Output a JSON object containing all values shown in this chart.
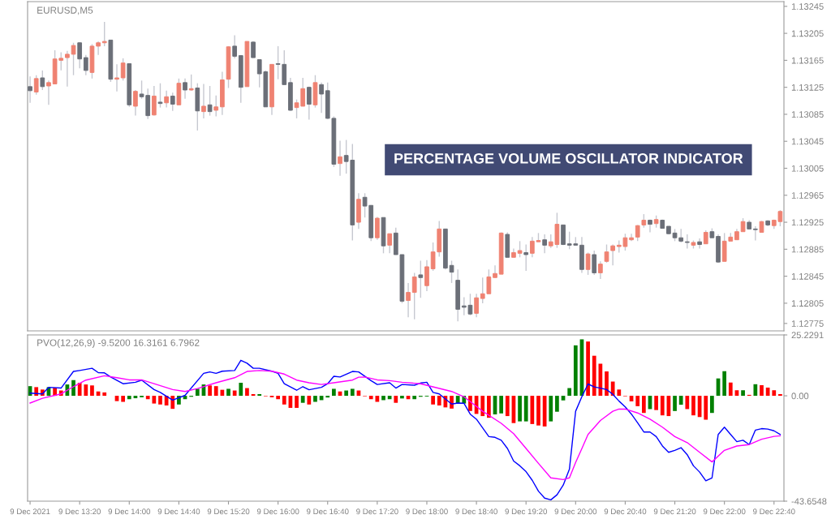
{
  "chart_data": [
    {
      "type": "candlestick",
      "title": "PERCENTAGE VOLUME OSCILLATOR INDICATOR",
      "annotations": [
        "EURUSD,M5"
      ],
      "colors": [
        "#6b6f78",
        "#ef8272",
        "#6b6f78",
        "#ef8272",
        "#ef8272",
        "#ef8272",
        "#ef8272",
        "#ef8272",
        "#6b6f78",
        "#6b6f78",
        "#ef8272",
        "#ef8272",
        "#ef8272",
        "#6b6f78",
        "#ef8272",
        "#ef8272",
        "#6b6f78",
        "#ef8272",
        "#6b6f78",
        "#6b6f78",
        "#ef8272",
        "#6b6f78",
        "#ef8272",
        "#6b6f78",
        "#ef8272",
        "#6b6f78",
        "#ef8272",
        "#6b6f78",
        "#ef8272",
        "#6b6f78",
        "#ef8272",
        "#ef8272",
        "#ef8272",
        "#6b6f78",
        "#6b6f78",
        "#ef8272",
        "#6b6f78",
        "#6b6f78",
        "#6b6f78",
        "#ef8272",
        "#6b6f78",
        "#6b6f78",
        "#6b6f78",
        "#ef8272",
        "#ef8272",
        "#6b6f78",
        "#ef8272",
        "#6b6f78",
        "#6b6f78",
        "#6b6f78",
        "#ef8272",
        "#6b6f78",
        "#6b6f78",
        "#ef8272",
        "#6b6f78",
        "#6b6f78",
        "#ef8272",
        "#6b6f78",
        "#ef8272",
        "#6b6f78",
        "#6b6f78",
        "#ef8272",
        "#ef8272",
        "#6b6f78",
        "#ef8272",
        "#ef8272",
        "#ef8272",
        "#6b6f78",
        "#6b6f78",
        "#6b6f78",
        "#6b6f78",
        "#6b6f78",
        "#ef8272",
        "#ef8272",
        "#ef8272",
        "#ef8272",
        "#ef8272",
        "#6b6f78",
        "#ef8272",
        "#ef8272",
        "#6b6f78",
        "#ef8272",
        "#ef8272",
        "#6b6f78",
        "#ef8272",
        "#ef8272",
        "#6b6f78",
        "#6b6f78",
        "#6b6f78",
        "#6b6f78",
        "#ef8272",
        "#6b6f78",
        "#ef8272",
        "#ef8272",
        "#ef8272",
        "#ef8272",
        "#ef8272",
        "#ef8272",
        "#ef8272",
        "#ef8272",
        "#6b6f78",
        "#ef8272",
        "#6b6f78",
        "#6b6f78",
        "#6b6f78",
        "#6b6f78",
        "#6b6f78",
        "#ef8272",
        "#6b6f78",
        "#ef8272",
        "#6b6f78",
        "#6b6f78",
        "#ef8272",
        "#ef8272",
        "#ef8272",
        "#ef8272",
        "#6b6f78",
        "#6b6f78",
        "#ef8272",
        "#6b6f78",
        "#ef8272",
        "#ef8272"
      ],
      "x": [
        "2021-12-09T12:40",
        "2021-12-09T12:45",
        "2021-12-09T12:50",
        "2021-12-09T12:55",
        "2021-12-09T13:00",
        "2021-12-09T13:05",
        "2021-12-09T13:10",
        "2021-12-09T13:15",
        "2021-12-09T13:20",
        "2021-12-09T13:25",
        "2021-12-09T13:30",
        "2021-12-09T13:35",
        "2021-12-09T13:40",
        "2021-12-09T13:45",
        "2021-12-09T13:50",
        "2021-12-09T13:55",
        "2021-12-09T14:00",
        "2021-12-09T14:05",
        "2021-12-09T14:10",
        "2021-12-09T14:15",
        "2021-12-09T14:20",
        "2021-12-09T14:25",
        "2021-12-09T14:30",
        "2021-12-09T14:35",
        "2021-12-09T14:40",
        "2021-12-09T14:45",
        "2021-12-09T14:50",
        "2021-12-09T14:55",
        "2021-12-09T15:00",
        "2021-12-09T15:05",
        "2021-12-09T15:10",
        "2021-12-09T15:15",
        "2021-12-09T15:20",
        "2021-12-09T15:25",
        "2021-12-09T15:30",
        "2021-12-09T15:35",
        "2021-12-09T15:40",
        "2021-12-09T15:45",
        "2021-12-09T15:50",
        "2021-12-09T15:55",
        "2021-12-09T16:00",
        "2021-12-09T16:05",
        "2021-12-09T16:10",
        "2021-12-09T16:15",
        "2021-12-09T16:20",
        "2021-12-09T16:25",
        "2021-12-09T16:30",
        "2021-12-09T16:35",
        "2021-12-09T16:40",
        "2021-12-09T16:45",
        "2021-12-09T16:50",
        "2021-12-09T16:55",
        "2021-12-09T17:00",
        "2021-12-09T17:05",
        "2021-12-09T17:10",
        "2021-12-09T17:15",
        "2021-12-09T17:20",
        "2021-12-09T17:25",
        "2021-12-09T17:30",
        "2021-12-09T17:35",
        "2021-12-09T17:40",
        "2021-12-09T17:45",
        "2021-12-09T17:50",
        "2021-12-09T17:55",
        "2021-12-09T18:00",
        "2021-12-09T18:05",
        "2021-12-09T18:10",
        "2021-12-09T18:15",
        "2021-12-09T18:20",
        "2021-12-09T18:25",
        "2021-12-09T18:30",
        "2021-12-09T18:35",
        "2021-12-09T18:40",
        "2021-12-09T18:45",
        "2021-12-09T18:50",
        "2021-12-09T18:55",
        "2021-12-09T19:00",
        "2021-12-09T19:05",
        "2021-12-09T19:10",
        "2021-12-09T19:15",
        "2021-12-09T19:20",
        "2021-12-09T19:25",
        "2021-12-09T19:30",
        "2021-12-09T19:35",
        "2021-12-09T19:40",
        "2021-12-09T19:45",
        "2021-12-09T19:50",
        "2021-12-09T19:55",
        "2021-12-09T20:00",
        "2021-12-09T20:05",
        "2021-12-09T20:10",
        "2021-12-09T20:15",
        "2021-12-09T20:20",
        "2021-12-09T20:25",
        "2021-12-09T20:30",
        "2021-12-09T20:35",
        "2021-12-09T20:40",
        "2021-12-09T20:45",
        "2021-12-09T20:50",
        "2021-12-09T20:55",
        "2021-12-09T21:00",
        "2021-12-09T21:05",
        "2021-12-09T21:10",
        "2021-12-09T21:15",
        "2021-12-09T21:20",
        "2021-12-09T21:25",
        "2021-12-09T21:30",
        "2021-12-09T21:35",
        "2021-12-09T21:40",
        "2021-12-09T21:45",
        "2021-12-09T21:50",
        "2021-12-09T21:55",
        "2021-12-09T22:00",
        "2021-12-09T22:05",
        "2021-12-09T22:10",
        "2021-12-09T22:15",
        "2021-12-09T22:20",
        "2021-12-09T22:25",
        "2021-12-09T22:30",
        "2021-12-09T22:35",
        "2021-12-09T22:40",
        "2021-12-09T22:45"
      ],
      "ohlc": [
        [
          1.13126,
          1.13141,
          1.13102,
          1.1312
        ],
        [
          1.13118,
          1.13143,
          1.13114,
          1.13138
        ],
        [
          1.13139,
          1.1315,
          1.13121,
          1.13126
        ],
        [
          1.13127,
          1.13135,
          1.13099,
          1.13132
        ],
        [
          1.1313,
          1.1318,
          1.1313,
          1.13167
        ],
        [
          1.13165,
          1.13177,
          1.1315,
          1.13168
        ],
        [
          1.13169,
          1.13179,
          1.13126,
          1.13174
        ],
        [
          1.13174,
          1.13191,
          1.13143,
          1.13187
        ],
        [
          1.13191,
          1.13192,
          1.13153,
          1.13167
        ],
        [
          1.13169,
          1.13173,
          1.13143,
          1.1315
        ],
        [
          1.13147,
          1.13189,
          1.13138,
          1.13186
        ],
        [
          1.13186,
          1.13193,
          1.13173,
          1.13191
        ],
        [
          1.13191,
          1.13222,
          1.13186,
          1.13193
        ],
        [
          1.13195,
          1.13195,
          1.13133,
          1.13137
        ],
        [
          1.13137,
          1.13159,
          1.13119,
          1.13139
        ],
        [
          1.13139,
          1.13168,
          1.13135,
          1.13161
        ],
        [
          1.1316,
          1.1316,
          1.13096,
          1.13099
        ],
        [
          1.13097,
          1.13121,
          1.13083,
          1.13119
        ],
        [
          1.13115,
          1.13135,
          1.13108,
          1.13111
        ],
        [
          1.13113,
          1.13123,
          1.13078,
          1.13083
        ],
        [
          1.13084,
          1.13127,
          1.13083,
          1.13112
        ],
        [
          1.13103,
          1.13131,
          1.13095,
          1.13101
        ],
        [
          1.13102,
          1.1312,
          1.13095,
          1.13111
        ],
        [
          1.13112,
          1.13117,
          1.1309,
          1.131
        ],
        [
          1.13099,
          1.13138,
          1.13099,
          1.13131
        ],
        [
          1.13132,
          1.13138,
          1.13108,
          1.13121
        ],
        [
          1.13121,
          1.13144,
          1.1312,
          1.13123
        ],
        [
          1.13124,
          1.13131,
          1.13061,
          1.1309
        ],
        [
          1.13089,
          1.1313,
          1.13079,
          1.13097
        ],
        [
          1.13099,
          1.13127,
          1.13083,
          1.13089
        ],
        [
          1.13091,
          1.13113,
          1.13082,
          1.13096
        ],
        [
          1.13096,
          1.13148,
          1.13084,
          1.13136
        ],
        [
          1.13137,
          1.13186,
          1.13124,
          1.13185
        ],
        [
          1.13186,
          1.13202,
          1.13168,
          1.13171
        ],
        [
          1.13172,
          1.13172,
          1.13102,
          1.13125
        ],
        [
          1.13126,
          1.13193,
          1.13126,
          1.13193
        ],
        [
          1.13192,
          1.13193,
          1.13169,
          1.13169
        ],
        [
          1.13166,
          1.13166,
          1.13125,
          1.13145
        ],
        [
          1.13148,
          1.1315,
          1.13096,
          1.13096
        ],
        [
          1.13096,
          1.13159,
          1.13084,
          1.13159
        ],
        [
          1.1316,
          1.13186,
          1.13137,
          1.13159
        ],
        [
          1.13159,
          1.1318,
          1.13129,
          1.13129
        ],
        [
          1.13132,
          1.13139,
          1.1309,
          1.13091
        ],
        [
          1.13095,
          1.13107,
          1.13079,
          1.13102
        ],
        [
          1.13097,
          1.13139,
          1.13097,
          1.13123
        ],
        [
          1.13125,
          1.13126,
          1.13077,
          1.131
        ],
        [
          1.13099,
          1.13143,
          1.13095,
          1.13132
        ],
        [
          1.13129,
          1.13132,
          1.13087,
          1.13115
        ],
        [
          1.1312,
          1.13132,
          1.13078,
          1.13079
        ],
        [
          1.13079,
          1.13082,
          1.13007,
          1.13011
        ],
        [
          1.13012,
          1.13046,
          1.12994,
          1.13022
        ],
        [
          1.13024,
          1.13047,
          1.12997,
          1.13015
        ],
        [
          1.13017,
          1.13041,
          1.12898,
          1.12921
        ],
        [
          1.12925,
          1.12968,
          1.12915,
          1.12959
        ],
        [
          1.12962,
          1.12968,
          1.12932,
          1.12949
        ],
        [
          1.1295,
          1.1295,
          1.12897,
          1.12902
        ],
        [
          1.12902,
          1.12933,
          1.12899,
          1.12931
        ],
        [
          1.12932,
          1.12932,
          1.12879,
          1.1289
        ],
        [
          1.12891,
          1.12908,
          1.12879,
          1.12908
        ],
        [
          1.12909,
          1.12917,
          1.12877,
          1.12877
        ],
        [
          1.12877,
          1.12877,
          1.12805,
          1.12808
        ],
        [
          1.12809,
          1.12835,
          1.12784,
          1.12821
        ],
        [
          1.12821,
          1.1285,
          1.12781,
          1.12844
        ],
        [
          1.12847,
          1.12868,
          1.12813,
          1.12843
        ],
        [
          1.12831,
          1.12869,
          1.12823,
          1.12859
        ],
        [
          1.12856,
          1.12895,
          1.12853,
          1.12881
        ],
        [
          1.12881,
          1.12927,
          1.12874,
          1.12915
        ],
        [
          1.12915,
          1.12915,
          1.12855,
          1.12857
        ],
        [
          1.12861,
          1.12868,
          1.12835,
          1.12851
        ],
        [
          1.12839,
          1.12855,
          1.12778,
          1.12796
        ],
        [
          1.12801,
          1.12814,
          1.12787,
          1.12799
        ],
        [
          1.12802,
          1.12819,
          1.12787,
          1.12789
        ],
        [
          1.1279,
          1.12819,
          1.12784,
          1.12813
        ],
        [
          1.12812,
          1.12843,
          1.12805,
          1.12819
        ],
        [
          1.12819,
          1.12855,
          1.12819,
          1.12844
        ],
        [
          1.12843,
          1.12861,
          1.12843,
          1.12849
        ],
        [
          1.12848,
          1.1291,
          1.12848,
          1.12909
        ],
        [
          1.12907,
          1.1291,
          1.12873,
          1.12873
        ],
        [
          1.12873,
          1.12886,
          1.12873,
          1.1288
        ],
        [
          1.12879,
          1.12897,
          1.12873,
          1.12883
        ],
        [
          1.1288,
          1.12892,
          1.12853,
          1.12877
        ],
        [
          1.12879,
          1.12903,
          1.12873,
          1.12897
        ],
        [
          1.12896,
          1.12909,
          1.12896,
          1.12898
        ],
        [
          1.12899,
          1.12907,
          1.12879,
          1.12891
        ],
        [
          1.1289,
          1.12907,
          1.12887,
          1.12896
        ],
        [
          1.12892,
          1.12939,
          1.12887,
          1.12922
        ],
        [
          1.12921,
          1.12921,
          1.12891,
          1.12892
        ],
        [
          1.12893,
          1.12911,
          1.12885,
          1.12891
        ],
        [
          1.12893,
          1.12903,
          1.12891,
          1.12891
        ],
        [
          1.12891,
          1.12903,
          1.1285,
          1.12855
        ],
        [
          1.12855,
          1.1288,
          1.12847,
          1.12878
        ],
        [
          1.12877,
          1.12883,
          1.12847,
          1.1285
        ],
        [
          1.1285,
          1.12867,
          1.12841,
          1.12863
        ],
        [
          1.12867,
          1.12892,
          1.12865,
          1.12881
        ],
        [
          1.12883,
          1.12892,
          1.12861,
          1.1289
        ],
        [
          1.12889,
          1.12898,
          1.1288,
          1.12891
        ],
        [
          1.12889,
          1.12908,
          1.12883,
          1.12902
        ],
        [
          1.12899,
          1.12908,
          1.12897,
          1.12902
        ],
        [
          1.12903,
          1.12921,
          1.12897,
          1.1292
        ],
        [
          1.12921,
          1.12937,
          1.12917,
          1.12928
        ],
        [
          1.12928,
          1.12929,
          1.1291,
          1.12922
        ],
        [
          1.12923,
          1.12935,
          1.12917,
          1.12929
        ],
        [
          1.12928,
          1.12929,
          1.12916,
          1.12916
        ],
        [
          1.12919,
          1.12919,
          1.12907,
          1.12908
        ],
        [
          1.12909,
          1.12915,
          1.12897,
          1.12902
        ],
        [
          1.12902,
          1.12915,
          1.12895,
          1.12897
        ],
        [
          1.12896,
          1.12907,
          1.12886,
          1.12895
        ],
        [
          1.12891,
          1.12898,
          1.12886,
          1.12895
        ],
        [
          1.12896,
          1.12901,
          1.12886,
          1.12892
        ],
        [
          1.12893,
          1.12913,
          1.12893,
          1.1291
        ],
        [
          1.12911,
          1.12916,
          1.12902,
          1.12902
        ],
        [
          1.12904,
          1.12907,
          1.12865,
          1.12866
        ],
        [
          1.12867,
          1.12909,
          1.12867,
          1.12897
        ],
        [
          1.12897,
          1.12909,
          1.12897,
          1.12903
        ],
        [
          1.12899,
          1.12915,
          1.12899,
          1.12911
        ],
        [
          1.12911,
          1.12931,
          1.12911,
          1.12926
        ],
        [
          1.12925,
          1.12928,
          1.12915,
          1.12915
        ],
        [
          1.12915,
          1.12919,
          1.12898,
          1.12914
        ],
        [
          1.1291,
          1.12927,
          1.1291,
          1.12926
        ],
        [
          1.12927,
          1.12928,
          1.12919,
          1.12921
        ],
        [
          1.1292,
          1.12929,
          1.12915,
          1.12928
        ],
        [
          1.12926,
          1.12943,
          1.12919,
          1.12941
        ]
      ],
      "xlim": [
        "2021-12-09T12:38",
        "2021-12-09T22:48"
      ],
      "ylim": [
        1.12764,
        1.13252
      ],
      "yticks": [
        1.13245,
        1.13205,
        1.13165,
        1.13125,
        1.13085,
        1.13045,
        1.13005,
        1.12965,
        1.12925,
        1.12885,
        1.12845,
        1.12805,
        1.12775
      ],
      "tick_labels": "y"
    },
    {
      "type": "bar",
      "title": "PVO(12,26,9) -9.5200 16.3161 6.7962",
      "x": [
        "2021-12-09T12:40",
        "2021-12-09T12:45",
        "2021-12-09T12:50",
        "2021-12-09T12:55",
        "2021-12-09T13:00",
        "2021-12-09T13:05",
        "2021-12-09T13:10",
        "2021-12-09T13:15",
        "2021-12-09T13:20",
        "2021-12-09T13:25",
        "2021-12-09T13:30",
        "2021-12-09T13:35",
        "2021-12-09T13:40",
        "2021-12-09T13:45",
        "2021-12-09T13:50",
        "2021-12-09T13:55",
        "2021-12-09T14:00",
        "2021-12-09T14:05",
        "2021-12-09T14:10",
        "2021-12-09T14:15",
        "2021-12-09T14:20",
        "2021-12-09T14:25",
        "2021-12-09T14:30",
        "2021-12-09T14:35",
        "2021-12-09T14:40",
        "2021-12-09T14:45",
        "2021-12-09T14:50",
        "2021-12-09T14:55",
        "2021-12-09T15:00",
        "2021-12-09T15:05",
        "2021-12-09T15:10",
        "2021-12-09T15:15",
        "2021-12-09T15:20",
        "2021-12-09T15:25",
        "2021-12-09T15:30",
        "2021-12-09T15:35",
        "2021-12-09T15:40",
        "2021-12-09T15:45",
        "2021-12-09T15:50",
        "2021-12-09T15:55",
        "2021-12-09T16:00",
        "2021-12-09T16:05",
        "2021-12-09T16:10",
        "2021-12-09T16:15",
        "2021-12-09T16:20",
        "2021-12-09T16:25",
        "2021-12-09T16:30",
        "2021-12-09T16:35",
        "2021-12-09T16:40",
        "2021-12-09T16:45",
        "2021-12-09T16:50",
        "2021-12-09T16:55",
        "2021-12-09T17:00",
        "2021-12-09T17:05",
        "2021-12-09T17:10",
        "2021-12-09T17:15",
        "2021-12-09T17:20",
        "2021-12-09T17:25",
        "2021-12-09T17:30",
        "2021-12-09T17:35",
        "2021-12-09T17:40",
        "2021-12-09T17:45",
        "2021-12-09T17:50",
        "2021-12-09T17:55",
        "2021-12-09T18:00",
        "2021-12-09T18:05",
        "2021-12-09T18:10",
        "2021-12-09T18:15",
        "2021-12-09T18:20",
        "2021-12-09T18:25",
        "2021-12-09T18:30",
        "2021-12-09T18:35",
        "2021-12-09T18:40",
        "2021-12-09T18:45",
        "2021-12-09T18:50",
        "2021-12-09T18:55",
        "2021-12-09T19:00",
        "2021-12-09T19:05",
        "2021-12-09T19:10",
        "2021-12-09T19:15",
        "2021-12-09T19:20",
        "2021-12-09T19:25",
        "2021-12-09T19:30",
        "2021-12-09T19:35",
        "2021-12-09T19:40",
        "2021-12-09T19:45",
        "2021-12-09T19:50",
        "2021-12-09T19:55",
        "2021-12-09T20:00",
        "2021-12-09T20:05",
        "2021-12-09T20:10",
        "2021-12-09T20:15",
        "2021-12-09T20:20",
        "2021-12-09T20:25",
        "2021-12-09T20:30",
        "2021-12-09T20:35",
        "2021-12-09T20:40",
        "2021-12-09T20:45",
        "2021-12-09T20:50",
        "2021-12-09T20:55",
        "2021-12-09T21:00",
        "2021-12-09T21:05",
        "2021-12-09T21:10",
        "2021-12-09T21:15",
        "2021-12-09T21:20",
        "2021-12-09T21:25",
        "2021-12-09T21:30",
        "2021-12-09T21:35",
        "2021-12-09T21:40",
        "2021-12-09T21:45",
        "2021-12-09T21:50",
        "2021-12-09T21:55",
        "2021-12-09T22:00",
        "2021-12-09T22:05",
        "2021-12-09T22:10",
        "2021-12-09T22:15",
        "2021-12-09T22:20",
        "2021-12-09T22:25",
        "2021-12-09T22:30",
        "2021-12-09T22:35",
        "2021-12-09T22:40",
        "2021-12-09T22:45"
      ],
      "series": [
        {
          "type": "bar",
          "values": [
            4.0,
            3.6,
            2.6,
            3.6,
            3.4,
            2.2,
            4.7,
            6.5,
            5.4,
            4.7,
            4.3,
            1.8,
            1.4,
            0,
            -2.2,
            -2.5,
            -1.4,
            -1.0,
            -0.6,
            -1.4,
            -3.2,
            -3.6,
            -4.0,
            -5.4,
            -3.6,
            -1.4,
            -0.4,
            2.9,
            4.7,
            4.3,
            4.0,
            2.5,
            2.9,
            2.2,
            5.4,
            3.2,
            0.7,
            0.7,
            -0.2,
            -0.6,
            -1.4,
            -3.6,
            -5.0,
            -5.0,
            -2.9,
            -3.6,
            -2.5,
            -1.8,
            -0.7,
            2.9,
            1.8,
            2.2,
            2.9,
            2.2,
            -0.2,
            -1.4,
            -2.5,
            -1.8,
            -1.4,
            -2.9,
            -1.1,
            -1.4,
            -1.4,
            -0.4,
            -0.3,
            -3.6,
            -4.0,
            -4.8,
            -5.3,
            -3.2,
            -3.2,
            -6.3,
            -7.5,
            -8.4,
            -9.1,
            -7.7,
            -7.3,
            -8.4,
            -11.3,
            -10.6,
            -10.6,
            -11.7,
            -12.3,
            -12.7,
            -10.6,
            -6.6,
            -1.9,
            3.2,
            20.9,
            23.4,
            22.5,
            16.6,
            13.3,
            10.1,
            5.9,
            2.6,
            -0.2,
            -2.3,
            -4.3,
            -7.1,
            -5.5,
            -5.9,
            -8.1,
            -8.4,
            -6.3,
            -3.7,
            -5.5,
            -8.1,
            -8.8,
            -9.9,
            -7.1,
            7.2,
            10.2,
            5.5,
            2.3,
            2.3,
            0.4,
            4.8,
            4.4,
            3.4,
            2.3,
            0.7
          ],
          "colors": [
            "#008000",
            "#ff0000",
            "#ff0000",
            "#008000",
            "#ff0000",
            "#ff0000",
            "#008000",
            "#008000",
            "#ff0000",
            "#ff0000",
            "#ff0000",
            "#ff0000",
            "#ff0000",
            "#ff0000",
            "#ff0000",
            "#ff0000",
            "#008000",
            "#008000",
            "#008000",
            "#ff0000",
            "#ff0000",
            "#ff0000",
            "#ff0000",
            "#ff0000",
            "#008000",
            "#008000",
            "#008000",
            "#008000",
            "#008000",
            "#ff0000",
            "#ff0000",
            "#ff0000",
            "#008000",
            "#ff0000",
            "#008000",
            "#ff0000",
            "#ff0000",
            "#008000",
            "#ff0000",
            "#ff0000",
            "#ff0000",
            "#ff0000",
            "#ff0000",
            "#ff0000",
            "#008000",
            "#ff0000",
            "#008000",
            "#008000",
            "#008000",
            "#008000",
            "#ff0000",
            "#008000",
            "#008000",
            "#ff0000",
            "#ff0000",
            "#ff0000",
            "#ff0000",
            "#008000",
            "#008000",
            "#ff0000",
            "#008000",
            "#ff0000",
            "#008000",
            "#008000",
            "#008000",
            "#ff0000",
            "#ff0000",
            "#ff0000",
            "#ff0000",
            "#008000",
            "#008000",
            "#ff0000",
            "#ff0000",
            "#ff0000",
            "#ff0000",
            "#008000",
            "#008000",
            "#ff0000",
            "#ff0000",
            "#008000",
            "#008000",
            "#ff0000",
            "#ff0000",
            "#ff0000",
            "#008000",
            "#008000",
            "#008000",
            "#008000",
            "#008000",
            "#008000",
            "#ff0000",
            "#ff0000",
            "#ff0000",
            "#ff0000",
            "#ff0000",
            "#ff0000",
            "#ff0000",
            "#ff0000",
            "#ff0000",
            "#ff0000",
            "#008000",
            "#ff0000",
            "#ff0000",
            "#ff0000",
            "#008000",
            "#008000",
            "#ff0000",
            "#ff0000",
            "#ff0000",
            "#ff0000",
            "#008000",
            "#008000",
            "#008000",
            "#ff0000",
            "#ff0000",
            "#008000",
            "#ff0000",
            "#008000",
            "#ff0000",
            "#ff0000",
            "#ff0000",
            "#ff0000"
          ]
        },
        {
          "type": "line",
          "color": "#0000ff",
          "x": [
            "2021-12-09T12:40",
            "2021-12-09T12:50",
            "2021-12-09T12:55",
            "2021-12-09T13:05",
            "2021-12-09T13:15",
            "2021-12-09T13:20",
            "2021-12-09T13:30",
            "2021-12-09T13:35",
            "2021-12-09T13:40",
            "2021-12-09T13:45",
            "2021-12-09T13:55",
            "2021-12-09T14:05",
            "2021-12-09T14:10",
            "2021-12-09T14:20",
            "2021-12-09T14:25",
            "2021-12-09T14:35",
            "2021-12-09T14:45",
            "2021-12-09T15:00",
            "2021-12-09T15:05",
            "2021-12-09T15:10",
            "2021-12-09T15:15",
            "2021-12-09T15:25",
            "2021-12-09T15:30",
            "2021-12-09T15:35",
            "2021-12-09T15:40",
            "2021-12-09T15:45",
            "2021-12-09T15:55",
            "2021-12-09T16:00",
            "2021-12-09T16:05",
            "2021-12-09T16:15",
            "2021-12-09T16:20",
            "2021-12-09T16:25",
            "2021-12-09T16:35",
            "2021-12-09T16:40",
            "2021-12-09T16:45",
            "2021-12-09T16:50",
            "2021-12-09T17:00",
            "2021-12-09T17:05",
            "2021-12-09T17:15",
            "2021-12-09T17:20",
            "2021-12-09T17:30",
            "2021-12-09T17:35",
            "2021-12-09T17:40",
            "2021-12-09T17:50",
            "2021-12-09T17:55",
            "2021-12-09T18:00",
            "2021-12-09T18:05",
            "2021-12-09T18:10",
            "2021-12-09T18:20",
            "2021-12-09T18:25",
            "2021-12-09T18:30",
            "2021-12-09T18:35",
            "2021-12-09T18:40",
            "2021-12-09T18:50",
            "2021-12-09T18:55",
            "2021-12-09T19:00",
            "2021-12-09T19:05",
            "2021-12-09T19:10",
            "2021-12-09T19:15",
            "2021-12-09T19:20",
            "2021-12-09T19:25",
            "2021-12-09T19:30",
            "2021-12-09T19:35",
            "2021-12-09T19:40",
            "2021-12-09T19:45",
            "2021-12-09T19:50",
            "2021-12-09T19:55",
            "2021-12-09T20:00",
            "2021-12-09T20:05",
            "2021-12-09T20:10",
            "2021-12-09T20:15",
            "2021-12-09T20:20",
            "2021-12-09T20:25",
            "2021-12-09T20:30",
            "2021-12-09T20:35",
            "2021-12-09T20:40",
            "2021-12-09T20:45",
            "2021-12-09T20:50",
            "2021-12-09T20:55",
            "2021-12-09T21:00",
            "2021-12-09T21:05",
            "2021-12-09T21:10",
            "2021-12-09T21:15",
            "2021-12-09T21:20",
            "2021-12-09T21:25",
            "2021-12-09T21:30",
            "2021-12-09T21:35",
            "2021-12-09T21:40",
            "2021-12-09T21:45",
            "2021-12-09T21:50",
            "2021-12-09T21:55",
            "2021-12-09T22:00",
            "2021-12-09T22:05",
            "2021-12-09T22:10",
            "2021-12-09T22:15",
            "2021-12-09T22:20",
            "2021-12-09T22:25",
            "2021-12-09T22:30",
            "2021-12-09T22:35",
            "2021-12-09T22:40",
            "2021-12-09T22:45"
          ],
          "values": [
            1.1,
            0.8,
            3.5,
            3.2,
            10.1,
            10.5,
            11.4,
            9.6,
            9.5,
            7.8,
            5.0,
            5.6,
            6.5,
            2.6,
            1.4,
            -1.8,
            0.2,
            9.3,
            9.9,
            9.3,
            10.2,
            10.5,
            14.7,
            13.5,
            11.4,
            11.4,
            10.2,
            9.3,
            5.0,
            2.3,
            3.8,
            2.5,
            3.5,
            5.0,
            8.1,
            7.8,
            10.1,
            9.9,
            6.3,
            4.7,
            5.4,
            3.2,
            4.7,
            4.4,
            5.3,
            5.6,
            1.4,
            0.8,
            -3.4,
            -3.0,
            -3.1,
            -7.6,
            -9.7,
            -16.9,
            -17.2,
            -18.4,
            -21.8,
            -27.0,
            -29.0,
            -31.4,
            -35.0,
            -39.5,
            -42.4,
            -43.1,
            -41.0,
            -37.0,
            -30.4,
            -6.4,
            -0.4,
            4.9,
            3.7,
            3.2,
            2.6,
            0.6,
            -2.2,
            -4.6,
            -7.6,
            -11.2,
            -15.0,
            -15.0,
            -16.9,
            -20.8,
            -23.4,
            -22.6,
            -21.5,
            -24.4,
            -29.0,
            -31.6,
            -35.2,
            -34.0,
            -16.0,
            -13.0,
            -16.0,
            -19.0,
            -18.4,
            -20.2,
            -14.2,
            -13.6,
            -13.8,
            -14.5,
            -16.0
          ]
        },
        {
          "type": "line",
          "color": "#ff00ff",
          "x": [
            "2021-12-09T12:40",
            "2021-12-09T12:50",
            "2021-12-09T13:05",
            "2021-12-09T13:15",
            "2021-12-09T13:25",
            "2021-12-09T13:40",
            "2021-12-09T13:50",
            "2021-12-09T14:00",
            "2021-12-09T14:10",
            "2021-12-09T14:20",
            "2021-12-09T14:35",
            "2021-12-09T14:45",
            "2021-12-09T14:55",
            "2021-12-09T15:10",
            "2021-12-09T15:25",
            "2021-12-09T15:35",
            "2021-12-09T15:45",
            "2021-12-09T15:55",
            "2021-12-09T16:05",
            "2021-12-09T16:15",
            "2021-12-09T16:25",
            "2021-12-09T16:35",
            "2021-12-09T16:45",
            "2021-12-09T17:00",
            "2021-12-09T17:05",
            "2021-12-09T17:10",
            "2021-12-09T17:20",
            "2021-12-09T17:30",
            "2021-12-09T17:40",
            "2021-12-09T17:55",
            "2021-12-09T18:20",
            "2021-12-09T18:30",
            "2021-12-09T18:45",
            "2021-12-09T19:00",
            "2021-12-09T19:10",
            "2021-12-09T19:20",
            "2021-12-09T19:30",
            "2021-12-09T19:40",
            "2021-12-09T19:50",
            "2021-12-09T19:55",
            "2021-12-09T20:00",
            "2021-12-09T20:05",
            "2021-12-09T20:10",
            "2021-12-09T20:20",
            "2021-12-09T20:30",
            "2021-12-09T20:35",
            "2021-12-09T20:40",
            "2021-12-09T20:50",
            "2021-12-09T21:00",
            "2021-12-09T21:10",
            "2021-12-09T21:20",
            "2021-12-09T21:30",
            "2021-12-09T21:40",
            "2021-12-09T21:50",
            "2021-12-09T22:00",
            "2021-12-09T22:10",
            "2021-12-09T22:20",
            "2021-12-09T22:30",
            "2021-12-09T22:40",
            "2021-12-09T22:45"
          ],
          "values": [
            -3.0,
            -1.0,
            0.8,
            3.8,
            6.5,
            8.3,
            7.5,
            6.6,
            6.6,
            5.0,
            2.6,
            1.8,
            3.0,
            5.4,
            7.5,
            10.1,
            10.5,
            10.2,
            9.0,
            6.5,
            5.4,
            4.7,
            5.4,
            6.5,
            7.7,
            7.8,
            6.6,
            6.3,
            5.6,
            5.0,
            1.8,
            -0.4,
            -6.4,
            -11.4,
            -15.7,
            -21.8,
            -28.0,
            -34.0,
            -34.7,
            -34.0,
            -27.6,
            -21.9,
            -16.0,
            -10.2,
            -6.4,
            -5.5,
            -5.5,
            -7.1,
            -9.7,
            -13.0,
            -16.9,
            -19.4,
            -23.4,
            -27.4,
            -22.6,
            -20.8,
            -20.2,
            -18.0,
            -16.8,
            -16.6
          ]
        }
      ],
      "xlim": [
        "2021-12-09T12:38",
        "2021-12-09T22:48"
      ],
      "ylim": [
        -43.6548,
        25.2291
      ],
      "yticks": [
        25.2291,
        {
          "value": 0,
          "label": "0.00"
        },
        -43.6548
      ],
      "xticks": [
        {
          "value": "2021-12-09T12:40",
          "label": "9 Dec 2021"
        },
        {
          "value": "2021-12-09T13:20",
          "label": "9 Dec 13:20"
        },
        {
          "value": "2021-12-09T14:00",
          "label": "9 Dec 14:00"
        },
        {
          "value": "2021-12-09T14:40",
          "label": "9 Dec 14:40"
        },
        {
          "value": "2021-12-09T15:20",
          "label": "9 Dec 15:20"
        },
        {
          "value": "2021-12-09T16:00",
          "label": "9 Dec 16:00"
        },
        {
          "value": "2021-12-09T16:40",
          "label": "9 Dec 16:40"
        },
        {
          "value": "2021-12-09T17:20",
          "label": "9 Dec 17:20"
        },
        {
          "value": "2021-12-09T18:00",
          "label": "9 Dec 18:00"
        },
        {
          "value": "2021-12-09T18:40",
          "label": "9 Dec 18:40"
        },
        {
          "value": "2021-12-09T19:20",
          "label": "9 Dec 19:20"
        },
        {
          "value": "2021-12-09T20:00",
          "label": "9 Dec 20:00"
        },
        {
          "value": "2021-12-09T20:40",
          "label": "9 Dec 20:40"
        },
        {
          "value": "2021-12-09T21:20",
          "label": "9 Dec 21:20"
        },
        {
          "value": "2021-12-09T22:00",
          "label": "9 Dec 22:00"
        },
        {
          "value": "2021-12-09T22:40",
          "label": "9 Dec 22:40"
        }
      ]
    }
  ]
}
